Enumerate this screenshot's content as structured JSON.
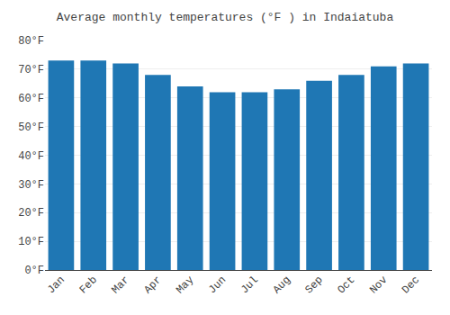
{
  "chart_data": {
    "type": "bar",
    "title": "Average monthly temperatures (°F ) in Indaiatuba",
    "categories": [
      "Jan",
      "Feb",
      "Mar",
      "Apr",
      "May",
      "Jun",
      "Jul",
      "Aug",
      "Sep",
      "Oct",
      "Nov",
      "Dec"
    ],
    "values": [
      73,
      73,
      72,
      68,
      64,
      62,
      62,
      63,
      66,
      68,
      71,
      72
    ],
    "ylim": [
      0,
      80
    ],
    "yticks": [
      {
        "value": 0,
        "label": "0°F"
      },
      {
        "value": 10,
        "label": "10°F"
      },
      {
        "value": 20,
        "label": "20°F"
      },
      {
        "value": 30,
        "label": "30°F"
      },
      {
        "value": 40,
        "label": "40°F"
      },
      {
        "value": 50,
        "label": "50°F"
      },
      {
        "value": 60,
        "label": "60°F"
      },
      {
        "value": 70,
        "label": "70°F"
      },
      {
        "value": 80,
        "label": "80°F"
      }
    ],
    "grid": true
  }
}
